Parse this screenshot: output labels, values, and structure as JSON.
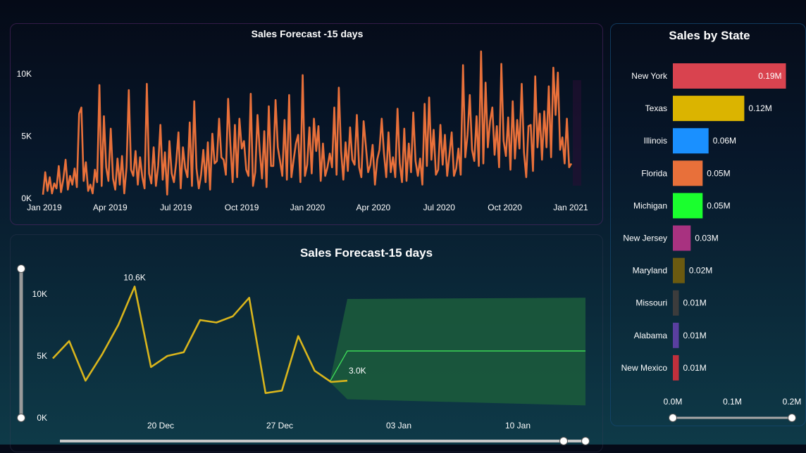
{
  "colors": {
    "top_line": "#e8703a",
    "forecast_line": "#d9b51c",
    "forecast_band": "#1b5a3c",
    "forecast_center": "#3fe05a"
  },
  "chart_data": [
    {
      "type": "line",
      "title": "Sales Forecast -15 days",
      "x_ticks": [
        "Jan 2019",
        "Apr 2019",
        "Jul 2019",
        "Oct 2019",
        "Jan 2020",
        "Apr 2020",
        "Jul 2020",
        "Oct 2020",
        "Jan 2021"
      ],
      "y_ticks": [
        "0K",
        "5K",
        "10K"
      ],
      "ylim": [
        0,
        11500
      ],
      "series": [
        {
          "values": [
            300,
            2100,
            600,
            1700,
            400,
            1200,
            800,
            2600,
            500,
            1500,
            3100,
            700,
            1800,
            1100,
            2400,
            900,
            6800,
            7300,
            1400,
            2900,
            600,
            1100,
            400,
            2300,
            1300,
            9100,
            1000,
            6600,
            2500,
            1400,
            5600,
            1600,
            700,
            3200,
            1100,
            3400,
            400,
            2500,
            8700,
            2300,
            1800,
            3800,
            1100,
            3300,
            1700,
            800,
            9200,
            2000,
            1200,
            4100,
            1000,
            2600,
            5900,
            1500,
            3700,
            300,
            4600,
            2000,
            1300,
            2900,
            5300,
            800,
            4100,
            2400,
            1700,
            6100,
            1000,
            7800,
            2400,
            800,
            1900,
            3900,
            1300,
            4500,
            700,
            5200,
            2800,
            3000,
            6400,
            3300,
            3100,
            1900,
            8000,
            4300,
            1300,
            5900,
            1700,
            6400,
            4000,
            4600,
            2300,
            1800,
            8400,
            1000,
            2100,
            6700,
            3800,
            1600,
            5400,
            900,
            7400,
            2600,
            2600,
            7900,
            4100,
            3000,
            1800,
            6300,
            1500,
            8300,
            1700,
            3100,
            4400,
            5100,
            1300,
            9900,
            1800,
            2700,
            5700,
            2000,
            6400,
            3800,
            5800,
            1400,
            4400,
            1800,
            2500,
            3600,
            2500,
            7300,
            1900,
            8900,
            3800,
            1500,
            4500,
            2200,
            5700,
            3100,
            2700,
            6700,
            2500,
            1700,
            6200,
            4200,
            2100,
            2700,
            4300,
            1100,
            3100,
            3900,
            6400,
            3600,
            1700,
            5300,
            2100,
            3300,
            1700,
            7200,
            2800,
            1300,
            5600,
            1400,
            4400,
            2100,
            6900,
            3000,
            1800,
            3200,
            1100,
            7600,
            2600,
            8100,
            3100,
            5500,
            1900,
            2300,
            5900,
            2700,
            5100,
            1800,
            3500,
            5300,
            1800,
            2400,
            4000,
            1900,
            10700,
            3300,
            5100,
            8300,
            3900,
            3000,
            6600,
            2600,
            11800,
            2800,
            9300,
            4100,
            6200,
            7300,
            3500,
            5800,
            2500,
            10800,
            4600,
            3400,
            6500,
            2300,
            7800,
            3200,
            6300,
            4000,
            9200,
            3700,
            1700,
            5800,
            5900,
            2200,
            9800,
            4100,
            6800,
            3100,
            7000,
            4100,
            9000,
            3300,
            10500,
            6700,
            10100,
            3900,
            4900,
            2800,
            6400,
            2500,
            2800
          ]
        }
      ]
    },
    {
      "type": "line",
      "title": "Sales Forecast-15 days",
      "x_ticks": [
        "20 Dec",
        "27 Dec",
        "03 Jan",
        "10 Jan"
      ],
      "y_ticks": [
        "0K",
        "5K",
        "10K"
      ],
      "ylim": [
        0,
        11000
      ],
      "series": [
        {
          "values": [
            4800,
            6200,
            3000,
            5100,
            7500,
            10600,
            4100,
            5000,
            5300,
            7900,
            7700,
            8200,
            9700,
            2000,
            2200,
            6600,
            3800,
            2900,
            3000
          ]
        }
      ],
      "annotations": [
        "10.6K",
        "3.0K"
      ],
      "forecast": {
        "start_value": 2900,
        "center": 5400,
        "upper": [
          9600,
          9700
        ],
        "lower": [
          1500,
          1000
        ]
      }
    },
    {
      "type": "bar",
      "orientation": "horizontal",
      "title": "Sales by State",
      "categories": [
        "New York",
        "Texas",
        "Illinois",
        "Florida",
        "Michigan",
        "New Jersey",
        "Maryland",
        "Missouri",
        "Alabama",
        "New Mexico"
      ],
      "values": [
        0.19,
        0.12,
        0.06,
        0.05,
        0.05,
        0.03,
        0.02,
        0.01,
        0.01,
        0.01
      ],
      "value_labels": [
        "0.19M",
        "0.12M",
        "0.06M",
        "0.05M",
        "0.05M",
        "0.03M",
        "0.02M",
        "0.01M",
        "0.01M",
        "0.01M"
      ],
      "colors": [
        "#d9434f",
        "#dbb400",
        "#1a90ff",
        "#e8703a",
        "#1aff2e",
        "#a83280",
        "#6b5a10",
        "#3c3c3c",
        "#5a3fa0",
        "#c0303c"
      ],
      "x_ticks": [
        "0.0M",
        "0.1M",
        "0.2M"
      ],
      "xlim": [
        0,
        0.2
      ]
    }
  ]
}
